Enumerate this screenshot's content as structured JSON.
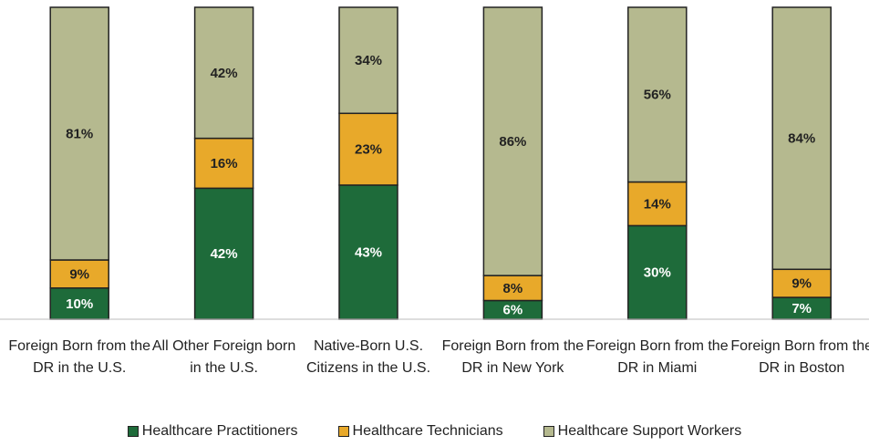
{
  "chart_data": {
    "type": "stacked_bar",
    "categories": [
      "Foreign Born from the DR in the U.S.",
      "All Other Foreign born in the U.S.",
      "Native-Born U.S. Citizens in the U.S.",
      "Foreign Born from the DR in New York",
      "Foreign Born from the DR in Miami",
      "Foreign Born from the DR in Boston"
    ],
    "series": [
      {
        "name": "Healthcare Practitioners",
        "color": "#1e6b3a",
        "values": [
          10,
          42,
          43,
          6,
          30,
          7
        ],
        "value_labels": [
          "10%",
          "42%",
          "43%",
          "6%",
          "30%",
          "7%"
        ]
      },
      {
        "name": "Healthcare Technicians",
        "color": "#e8a92a",
        "values": [
          9,
          16,
          23,
          8,
          14,
          9
        ],
        "value_labels": [
          "9%",
          "16%",
          "23%",
          "8%",
          "14%",
          "9%"
        ]
      },
      {
        "name": "Healthcare Support Workers",
        "color": "#b5b98f",
        "values": [
          81,
          42,
          34,
          86,
          56,
          84
        ],
        "value_labels": [
          "81%",
          "42%",
          "34%",
          "86%",
          "56%",
          "84%"
        ]
      }
    ],
    "ylim": [
      0,
      100
    ],
    "legend": "bottom"
  }
}
